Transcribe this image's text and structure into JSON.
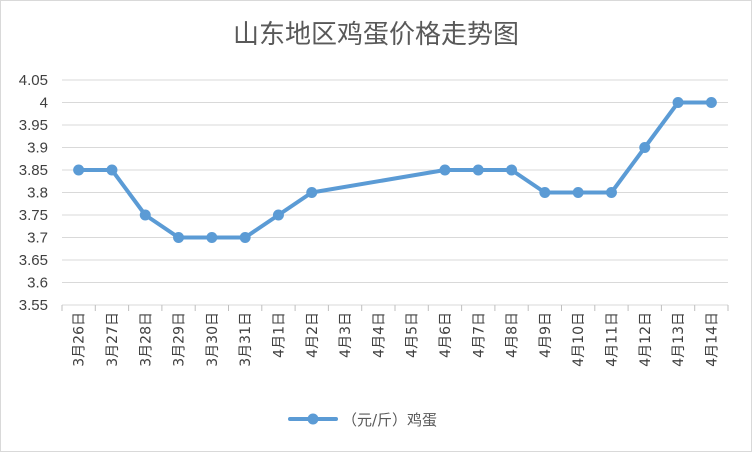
{
  "chart_data": {
    "type": "line",
    "title": "山东地区鸡蛋价格走势图",
    "categories": [
      "3月26日",
      "3月27日",
      "3月28日",
      "3月29日",
      "3月30日",
      "3月31日",
      "4月1日",
      "4月2日",
      "4月3日",
      "4月4日",
      "4月5日",
      "4月6日",
      "4月7日",
      "4月8日",
      "4月9日",
      "4月10日",
      "4月11日",
      "4月12日",
      "4月13日",
      "4月14日"
    ],
    "series": [
      {
        "name": "（元/斤）鸡蛋",
        "color": "#5b9bd5",
        "values": [
          3.85,
          3.85,
          3.75,
          3.7,
          3.7,
          3.7,
          3.75,
          3.8,
          null,
          null,
          null,
          3.85,
          3.85,
          3.85,
          3.8,
          3.8,
          3.8,
          3.9,
          4.0,
          4.0
        ]
      }
    ],
    "ylim": [
      3.55,
      4.05
    ],
    "yticks": [
      "3.55",
      "3.6",
      "3.65",
      "3.7",
      "3.75",
      "3.8",
      "3.85",
      "3.9",
      "3.95",
      "4",
      "4.05"
    ],
    "xlabel": "",
    "ylabel": "",
    "grid": "horizontal",
    "legend": "bottom"
  }
}
